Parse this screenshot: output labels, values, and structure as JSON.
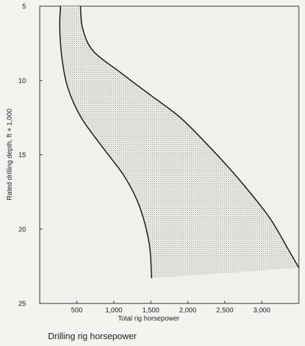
{
  "caption": "Drilling rig horsepower",
  "chart_data": {
    "type": "area",
    "title": "",
    "xlabel": "Total rig horsepower",
    "ylabel": "Rated drilling depth, ft × 1,000",
    "xlim": [
      0,
      3500
    ],
    "ylim": [
      25,
      5
    ],
    "xticks": [
      500,
      1000,
      1500,
      2000,
      2500,
      3000
    ],
    "xtick_labels": [
      "500",
      "1,000",
      "1,500",
      "2,000",
      "2,500",
      "3,000"
    ],
    "yticks": [
      5,
      10,
      15,
      20,
      25
    ],
    "ytick_labels": [
      "5",
      "10",
      "15",
      "20",
      "25"
    ],
    "grid": false,
    "fill_color": "#9a9a9a",
    "line_color": "#1c1c1c",
    "series": [
      {
        "x": [
          280,
          270,
          300,
          380,
          560,
          850,
          1150,
          1350,
          1480,
          1510
        ],
        "y": [
          5,
          6.5,
          8.5,
          10.5,
          12.5,
          14.5,
          16.5,
          18.5,
          21,
          23.3
        ]
      },
      {
        "x": [
          550,
          580,
          720,
          1100,
          1500,
          1900,
          2300,
          2700,
          3100,
          3350,
          3500
        ],
        "y": [
          5,
          6.5,
          8,
          9.5,
          11,
          12.5,
          14.5,
          16.7,
          19.2,
          21.3,
          22.6
        ]
      }
    ]
  }
}
